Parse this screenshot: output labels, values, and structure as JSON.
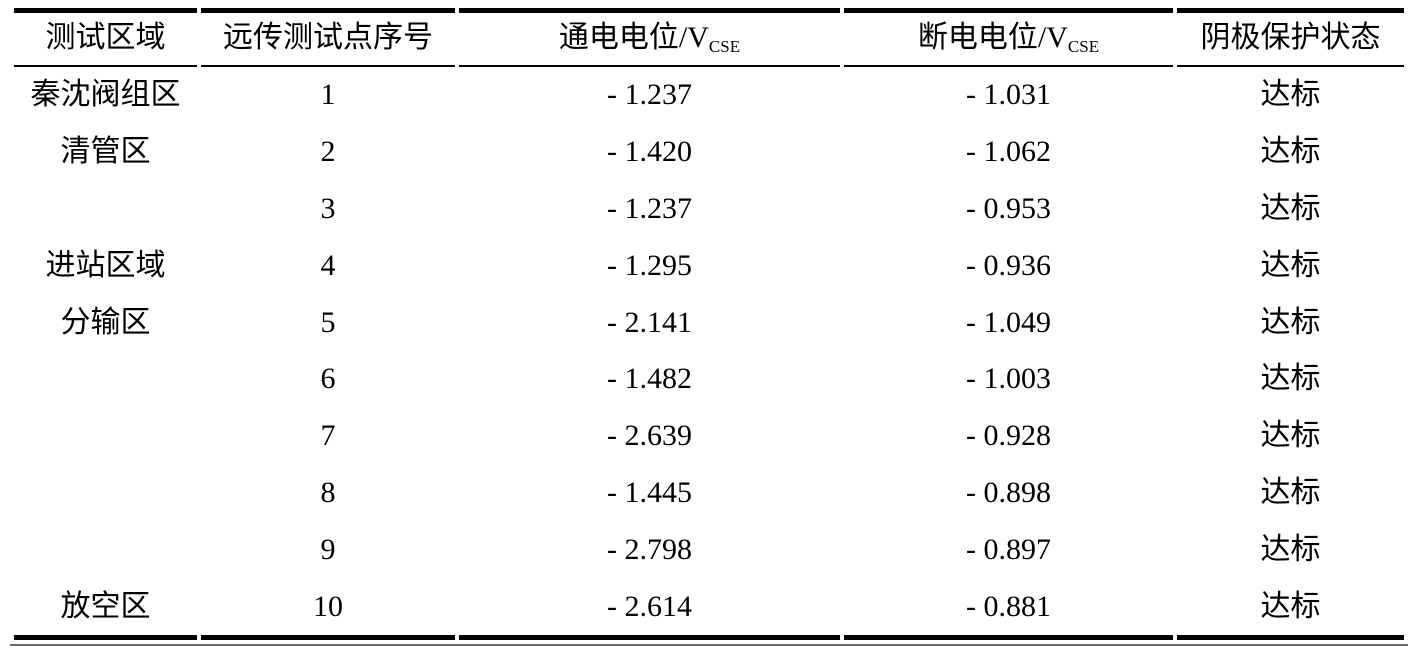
{
  "style": {
    "background": "#ffffff",
    "text_color": "#000000",
    "rule_color": "#000000"
  },
  "table": {
    "headers": [
      {
        "text": "测试区域",
        "sub": ""
      },
      {
        "text": "远传测试点序号",
        "sub": ""
      },
      {
        "text": "通电电位/V",
        "sub": "CSE"
      },
      {
        "text": "断电电位/V",
        "sub": "CSE"
      },
      {
        "text": "阴极保护状态",
        "sub": ""
      }
    ],
    "rows": [
      [
        "秦沈阀组区",
        "1",
        "- 1.237",
        "- 1.031",
        "达标"
      ],
      [
        "清管区",
        "2",
        "- 1.420",
        "- 1.062",
        "达标"
      ],
      [
        "",
        "3",
        "- 1.237",
        "- 0.953",
        "达标"
      ],
      [
        "进站区域",
        "4",
        "- 1.295",
        "- 0.936",
        "达标"
      ],
      [
        "分输区",
        "5",
        "- 2.141",
        "- 1.049",
        "达标"
      ],
      [
        "",
        "6",
        "- 1.482",
        "- 1.003",
        "达标"
      ],
      [
        "",
        "7",
        "- 2.639",
        "- 0.928",
        "达标"
      ],
      [
        "",
        "8",
        "- 1.445",
        "- 0.898",
        "达标"
      ],
      [
        "",
        "9",
        "- 2.798",
        "- 0.897",
        "达标"
      ],
      [
        "放空区",
        "10",
        "- 2.614",
        "- 0.881",
        "达标"
      ]
    ]
  },
  "chart_data": {
    "type": "table",
    "columns": [
      "测试区域",
      "远传测试点序号",
      "通电电位/VCSE",
      "断电电位/VCSE",
      "阴极保护状态"
    ],
    "rows": [
      [
        "秦沈阀组区",
        1,
        -1.237,
        -1.031,
        "达标"
      ],
      [
        "清管区",
        2,
        -1.42,
        -1.062,
        "达标"
      ],
      [
        "",
        3,
        -1.237,
        -0.953,
        "达标"
      ],
      [
        "进站区域",
        4,
        -1.295,
        -0.936,
        "达标"
      ],
      [
        "分输区",
        5,
        -2.141,
        -1.049,
        "达标"
      ],
      [
        "",
        6,
        -1.482,
        -1.003,
        "达标"
      ],
      [
        "",
        7,
        -2.639,
        -0.928,
        "达标"
      ],
      [
        "",
        8,
        -1.445,
        -0.898,
        "达标"
      ],
      [
        "",
        9,
        -2.798,
        -0.897,
        "达标"
      ],
      [
        "放空区",
        10,
        -2.614,
        -0.881,
        "达标"
      ]
    ]
  }
}
